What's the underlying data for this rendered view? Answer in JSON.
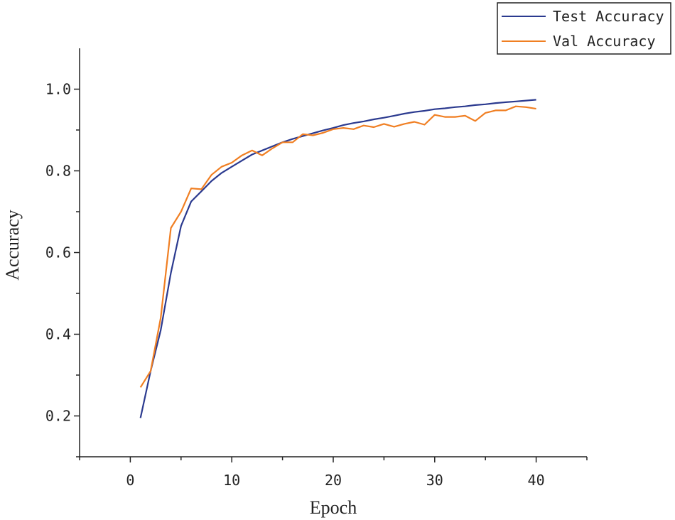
{
  "chart_data": {
    "type": "line",
    "title": "",
    "xlabel": "Epoch",
    "ylabel": "Accuracy",
    "xlim": [
      -5,
      45
    ],
    "ylim": [
      0.1,
      1.1
    ],
    "xticks": [
      0,
      10,
      20,
      30,
      40
    ],
    "yticks": [
      0.2,
      0.4,
      0.6,
      0.8,
      1.0
    ],
    "xtick_labels": [
      "0",
      "10",
      "20",
      "30",
      "40"
    ],
    "ytick_labels": [
      "0.2",
      "0.4",
      "0.6",
      "0.8",
      "1.0"
    ],
    "grid": false,
    "legend_position": "top-right",
    "x": [
      1,
      2,
      3,
      4,
      5,
      6,
      7,
      8,
      9,
      10,
      11,
      12,
      13,
      14,
      15,
      16,
      17,
      18,
      19,
      20,
      21,
      22,
      23,
      24,
      25,
      26,
      27,
      28,
      29,
      30,
      31,
      32,
      33,
      34,
      35,
      36,
      37,
      38,
      39,
      40
    ],
    "series": [
      {
        "name": "Test Accuracy",
        "color": "#2b3a8f",
        "values": [
          0.195,
          0.31,
          0.41,
          0.55,
          0.665,
          0.725,
          0.75,
          0.775,
          0.795,
          0.81,
          0.825,
          0.84,
          0.85,
          0.86,
          0.87,
          0.878,
          0.885,
          0.892,
          0.899,
          0.905,
          0.912,
          0.917,
          0.921,
          0.926,
          0.93,
          0.935,
          0.94,
          0.944,
          0.947,
          0.951,
          0.953,
          0.956,
          0.958,
          0.961,
          0.963,
          0.966,
          0.968,
          0.97,
          0.972,
          0.974
        ]
      },
      {
        "name": "Val Accuracy",
        "color": "#f07f23",
        "values": [
          0.27,
          0.31,
          0.44,
          0.66,
          0.7,
          0.757,
          0.755,
          0.79,
          0.81,
          0.82,
          0.838,
          0.85,
          0.838,
          0.855,
          0.87,
          0.87,
          0.89,
          0.887,
          0.893,
          0.902,
          0.905,
          0.902,
          0.911,
          0.907,
          0.915,
          0.908,
          0.915,
          0.92,
          0.913,
          0.937,
          0.932,
          0.932,
          0.935,
          0.922,
          0.942,
          0.948,
          0.948,
          0.958,
          0.956,
          0.952
        ]
      }
    ]
  }
}
